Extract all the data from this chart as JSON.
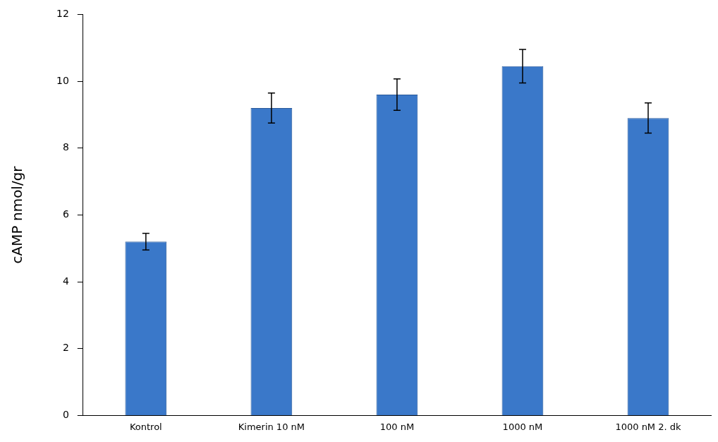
{
  "chart_data": {
    "type": "bar",
    "ylabel": "cAMP nmol/gr",
    "categories": [
      "Kontrol",
      "Kimerin 10 nM",
      "100 nM",
      "1000 nM",
      "1000 nM 2. dk"
    ],
    "values": [
      5.2,
      9.2,
      9.6,
      10.45,
      8.9
    ],
    "errors": [
      0.25,
      0.45,
      0.47,
      0.5,
      0.45
    ],
    "color": "#3a78c9",
    "ylim": [
      0,
      12
    ],
    "yticks": [
      0,
      2,
      4,
      6,
      8,
      10,
      12
    ],
    "grid": false,
    "legend": false
  }
}
